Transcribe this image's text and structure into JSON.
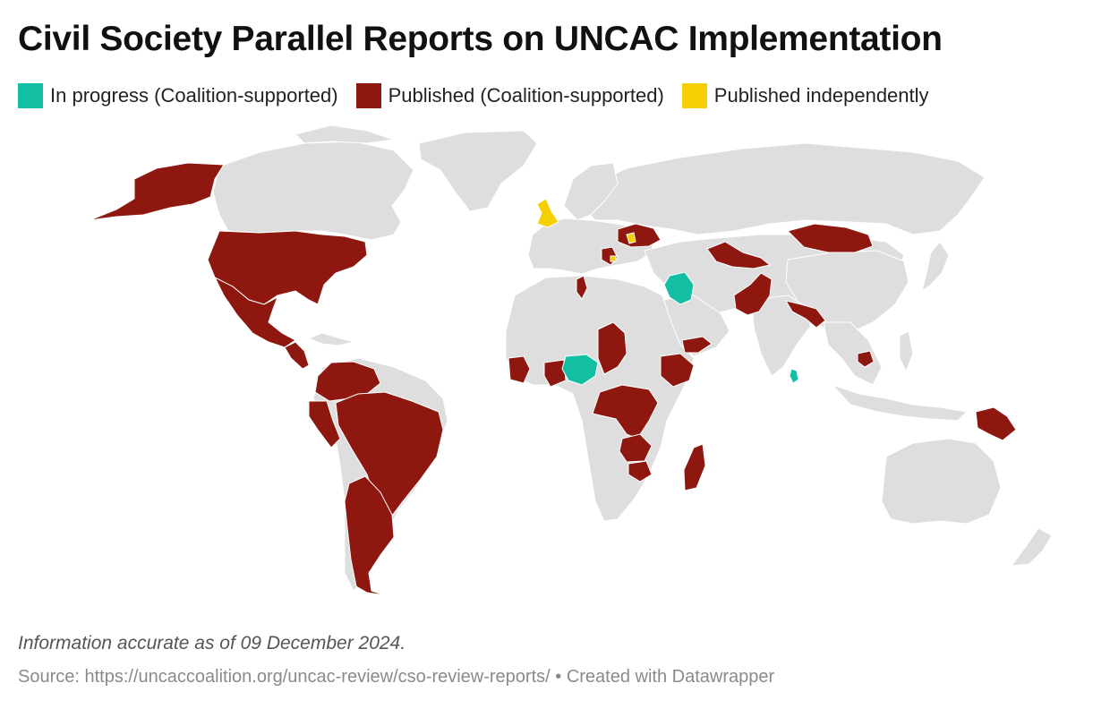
{
  "title": "Civil Society Parallel Reports on UNCAC Implementation",
  "legend": [
    {
      "label": "In progress (Coalition-supported)",
      "color": "#12bfa3"
    },
    {
      "label": "Published (Coalition-supported)",
      "color": "#8e170f"
    },
    {
      "label": "Published independently",
      "color": "#f5d000"
    }
  ],
  "colors": {
    "land": "#dedede",
    "published": "#8e170f",
    "in_progress": "#12bfa3",
    "independent": "#f5d000",
    "border": "#ffffff"
  },
  "note": "Information accurate as of 09 December 2024.",
  "source": "Source: https://uncaccoalition.org/uncac-review/cso-review-reports/ • Created with Datawrapper"
}
